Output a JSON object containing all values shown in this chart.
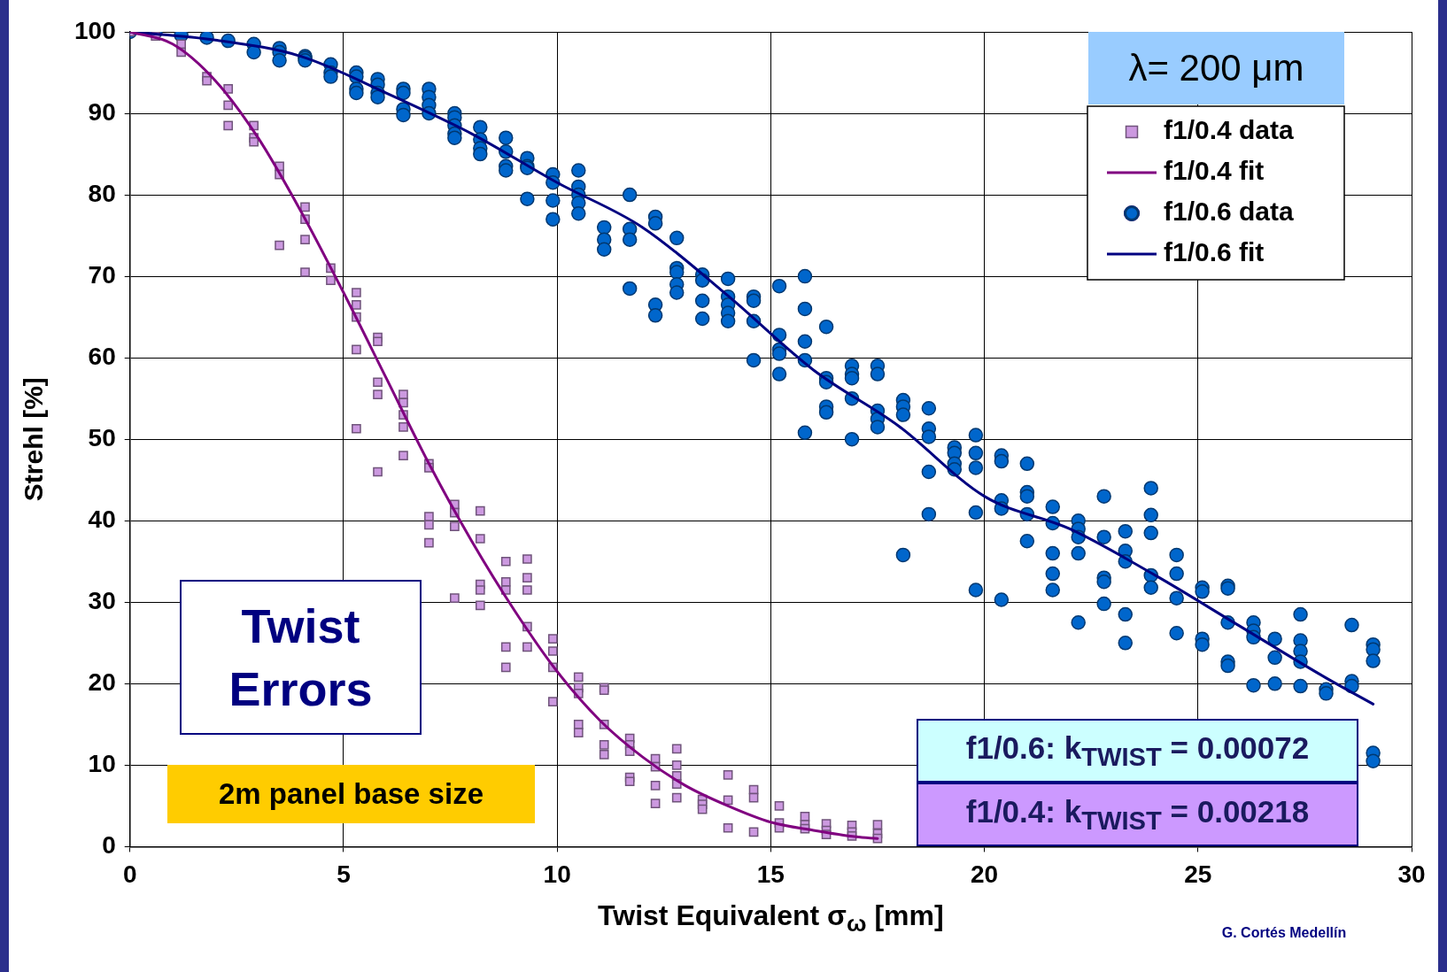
{
  "chart_data": {
    "type": "scatter",
    "xlabel": "Twist Equivalent σ$_{ω}$ [mm]",
    "ylabel": "Strehl [%]",
    "xlim": [
      0,
      30
    ],
    "xticks": [
      0,
      5,
      10,
      15,
      20,
      25,
      30
    ],
    "ylim": [
      0,
      100
    ],
    "yticks": [
      0,
      10,
      20,
      30,
      40,
      50,
      60,
      70,
      80,
      90,
      100
    ],
    "grid": true,
    "legend": "top right",
    "annotations": [
      "λ= 200 μm",
      "Twist Errors",
      "2m panel base size",
      "f1/0.6: k$_{TWIST}$ = 0.00072",
      "f1/0.4: k$_{TWIST}$ = 0.00218",
      "G. Cortés Medellín"
    ],
    "series": [
      {
        "name": "f1/0.4 data",
        "type": "scatter",
        "marker": "square",
        "color": "#cc99e0",
        "x": [
          0,
          0.6,
          1.2,
          1.2,
          1.8,
          1.8,
          2.3,
          2.3,
          2.3,
          2.9,
          2.9,
          2.9,
          3.5,
          3.5,
          3.5,
          4.1,
          4.1,
          4.1,
          4.1,
          4.7,
          4.7,
          5.3,
          5.3,
          5.3,
          5.3,
          5.3,
          5.8,
          5.8,
          5.8,
          5.8,
          5.8,
          6.4,
          6.4,
          6.4,
          6.4,
          6.4,
          7,
          7,
          7,
          7,
          7,
          7.6,
          7.6,
          7.6,
          7.6,
          8.2,
          8.2,
          8.2,
          8.2,
          8.2,
          8.8,
          8.8,
          8.8,
          8.8,
          8.8,
          9.3,
          9.3,
          9.3,
          9.3,
          9.3,
          9.9,
          9.9,
          9.9,
          9.9,
          10.5,
          10.5,
          10.5,
          10.5,
          10.5,
          11.1,
          11.1,
          11.1,
          11.1,
          11.1,
          11.7,
          11.7,
          11.7,
          11.7,
          11.7,
          12.3,
          12.3,
          12.3,
          12.3,
          12.8,
          12.8,
          12.8,
          12.8,
          12.8,
          13.4,
          13.4,
          13.4,
          14,
          14,
          14,
          14.6,
          14.6,
          14.6,
          15.2,
          15.2,
          15.2,
          15.8,
          15.8,
          15.8,
          16.3,
          16.3,
          16.3,
          16.9,
          16.9,
          16.9,
          17.5,
          17.5,
          17.5
        ],
        "values": [
          100,
          99.5,
          98.5,
          97.5,
          94.5,
          94,
          93,
          91,
          88.5,
          88.5,
          87,
          86.5,
          83.5,
          82.5,
          73.8,
          78.5,
          77,
          74.5,
          70.5,
          71,
          69.5,
          68,
          66.5,
          65,
          61,
          51.3,
          62.5,
          62,
          57,
          55.5,
          46,
          55.5,
          54.5,
          53,
          51.5,
          48,
          47,
          46.5,
          40.5,
          39.5,
          37.3,
          42,
          41,
          39.3,
          30.5,
          41.2,
          37.8,
          32.2,
          31.5,
          29.6,
          35,
          32.5,
          31.5,
          24.5,
          22,
          35.3,
          33,
          31.5,
          27,
          24.5,
          25.5,
          24,
          22,
          17.8,
          20.8,
          19.5,
          18.8,
          15,
          14,
          19.5,
          19.2,
          15,
          12.5,
          11.3,
          13.3,
          12.5,
          11.7,
          8.5,
          8,
          10.8,
          9.8,
          7.5,
          5.3,
          12,
          10,
          8.7,
          7.7,
          6,
          5.8,
          5.2,
          4.6,
          8.8,
          5.7,
          2.3,
          7,
          6,
          1.8,
          5,
          2.9,
          2.3,
          3.7,
          2.7,
          2.2,
          2.8,
          2,
          1.5,
          2.6,
          1.8,
          1.3,
          2.7,
          1.6,
          1
        ]
      },
      {
        "name": "f1/0.4 fit",
        "type": "line",
        "marker": "none",
        "line_style": "solid",
        "color": "#800080",
        "x": [
          0,
          1,
          2,
          3,
          4,
          5,
          6,
          7,
          8,
          9,
          10,
          11,
          12,
          13,
          14,
          15,
          16,
          17,
          17.5
        ],
        "values": [
          100,
          98.5,
          94,
          87,
          78,
          68,
          57.5,
          47,
          37.5,
          29,
          21.5,
          15.5,
          11,
          7.5,
          5,
          3,
          2,
          1.2,
          1
        ]
      },
      {
        "name": "f1/0.6 data",
        "type": "scatter",
        "marker": "circle",
        "color": "#0066cc",
        "x": [
          0,
          0.6,
          1.2,
          1.8,
          2.3,
          2.9,
          2.9,
          3.5,
          3.5,
          3.5,
          4.1,
          4.1,
          4.1,
          4.7,
          4.7,
          4.7,
          5.3,
          5.3,
          5.3,
          5.3,
          5.8,
          5.8,
          5.8,
          5.8,
          6.4,
          6.4,
          6.4,
          6.4,
          7,
          7,
          7,
          7,
          7.6,
          7.6,
          7.6,
          7.6,
          7.6,
          8.2,
          8.2,
          8.2,
          8.2,
          8.8,
          8.8,
          8.8,
          8.8,
          9.3,
          9.3,
          9.3,
          9.3,
          9.9,
          9.9,
          9.9,
          9.9,
          10.5,
          10.5,
          10.5,
          10.5,
          10.5,
          11.1,
          11.1,
          11.1,
          11.7,
          11.7,
          11.7,
          11.7,
          12.3,
          12.3,
          12.3,
          12.3,
          12.8,
          12.8,
          12.8,
          12.8,
          12.8,
          13.4,
          13.4,
          13.4,
          13.4,
          14,
          14,
          14,
          14,
          14,
          14.6,
          14.6,
          14.6,
          14.6,
          15.2,
          15.2,
          15.2,
          15.2,
          15.2,
          15.8,
          15.8,
          15.8,
          15.8,
          15.8,
          16.3,
          16.3,
          16.3,
          16.3,
          16.3,
          16.9,
          16.9,
          16.9,
          16.9,
          16.9,
          17.5,
          17.5,
          17.5,
          17.5,
          17.5,
          18.1,
          18.1,
          18.1,
          18.1,
          18.7,
          18.7,
          18.7,
          18.7,
          18.7,
          19.3,
          19.3,
          19.3,
          19.3,
          19.8,
          19.8,
          19.8,
          19.8,
          19.8,
          20.4,
          20.4,
          20.4,
          20.4,
          20.4,
          21,
          21,
          21,
          21,
          21,
          21.6,
          21.6,
          21.6,
          21.6,
          21.6,
          22.2,
          22.2,
          22.2,
          22.2,
          22.2,
          22.8,
          22.8,
          22.8,
          22.8,
          22.8,
          23.3,
          23.3,
          23.3,
          23.3,
          23.3,
          23.9,
          23.9,
          23.9,
          23.9,
          23.9,
          24.5,
          24.5,
          24.5,
          24.5,
          25.1,
          25.1,
          25.1,
          25.1,
          25.7,
          25.7,
          25.7,
          25.7,
          25.7,
          26.3,
          26.3,
          26.3,
          26.3,
          26.8,
          26.8,
          26.8,
          27.4,
          27.4,
          27.4,
          27.4,
          27.4,
          28,
          28,
          28.6,
          28.6,
          28.6,
          29.1,
          29.1,
          29.1,
          29.1,
          29.1
        ],
        "values": [
          100,
          100,
          99.6,
          99.3,
          98.9,
          98.5,
          97.5,
          98,
          97.5,
          96.5,
          97,
          96.8,
          96.5,
          96,
          95,
          94.5,
          95,
          94.5,
          93,
          92.5,
          94.2,
          93.5,
          92.5,
          92,
          93,
          92.5,
          90.5,
          89.8,
          93,
          92,
          91,
          90,
          90,
          89.5,
          88.5,
          87.5,
          87,
          88.3,
          86.8,
          85.7,
          85,
          87,
          85.3,
          83.5,
          83,
          84.5,
          83.5,
          83.3,
          79.5,
          82.5,
          81.5,
          79.3,
          77,
          83,
          81,
          80,
          79,
          77.7,
          76,
          74.5,
          73.3,
          80,
          75.8,
          74.5,
          68.5,
          77.3,
          76.5,
          66.5,
          65.2,
          74.7,
          71,
          70.5,
          69,
          68,
          70.2,
          69.5,
          67,
          64.8,
          69.7,
          67.5,
          66.5,
          65.5,
          64.5,
          67.5,
          67,
          64.5,
          59.7,
          68.8,
          62.8,
          61,
          60.5,
          58,
          70,
          66,
          62,
          59.7,
          50.8,
          63.8,
          57.5,
          57,
          54,
          53.3,
          59,
          58,
          57.5,
          55,
          50,
          59,
          58,
          53.5,
          52.5,
          51.5,
          54.8,
          54,
          53,
          35.8,
          53.8,
          51.3,
          50.3,
          46,
          40.8,
          49,
          48.3,
          47,
          46.3,
          50.5,
          48.3,
          46.5,
          41,
          31.5,
          48,
          47.3,
          42.5,
          41.5,
          30.3,
          47,
          43.5,
          43,
          40.8,
          37.5,
          41.7,
          39.7,
          36,
          33.5,
          31.5,
          40,
          39,
          38,
          36,
          27.5,
          43,
          38,
          33,
          32.5,
          29.8,
          38.7,
          36.3,
          35,
          28.5,
          25,
          44,
          40.7,
          38.5,
          33.3,
          31.8,
          35.8,
          33.5,
          30.5,
          26.2,
          31.8,
          31.3,
          25.5,
          24.8,
          32,
          31.7,
          27.5,
          22.7,
          22.2,
          27.5,
          26.5,
          25.7,
          19.8,
          25.5,
          23.2,
          20,
          28.5,
          25.3,
          24,
          22.7,
          19.7,
          19.3,
          18.8,
          27.2,
          20.3,
          19.7,
          24.8,
          24.2,
          22.8,
          11.5,
          10.5
        ]
      },
      {
        "name": "f1/0.6 fit",
        "type": "line",
        "marker": "none",
        "line_style": "solid",
        "color": "#000080",
        "x": [
          0,
          2,
          4,
          6,
          8,
          10,
          12,
          14,
          16,
          18,
          20,
          22,
          24,
          26,
          28,
          29.1
        ],
        "values": [
          100,
          99,
          97,
          92.5,
          87.5,
          81.5,
          76,
          67.6,
          58.5,
          51.6,
          43,
          39,
          33.3,
          27,
          20.7,
          17.5
        ]
      }
    ]
  }
}
